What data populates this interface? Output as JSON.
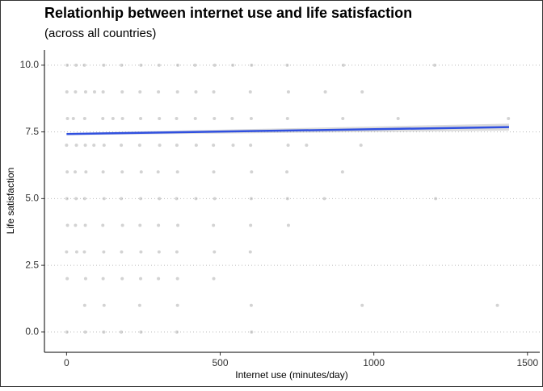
{
  "chart_data": {
    "type": "scatter",
    "title": "Relationhip between internet use and life satisfaction",
    "subtitle": "(across all countries)",
    "x_label": "Internet use (minutes/day)",
    "y_label": "Life satisfaction",
    "xlim": [
      -72,
      1540
    ],
    "ylim": [
      -0.76,
      10.57
    ],
    "xticks": [
      0,
      500,
      1000,
      1500
    ],
    "yticks": [
      {
        "value": 0,
        "label": "0.0"
      },
      {
        "value": 2.5,
        "label": "2.5"
      },
      {
        "value": 5,
        "label": "5.0"
      },
      {
        "value": 7.5,
        "label": "7.5"
      },
      {
        "value": 10,
        "label": "10.0"
      }
    ],
    "grid": true,
    "color": "#9e9e9e",
    "x": [
      2,
      31,
      58,
      121,
      179,
      242,
      301,
      362,
      418,
      482,
      541,
      602,
      718,
      901,
      1198,
      1,
      29,
      62,
      91,
      119,
      181,
      239,
      299,
      361,
      421,
      479,
      598,
      722,
      842,
      962,
      3,
      22,
      59,
      118,
      151,
      182,
      241,
      302,
      358,
      419,
      481,
      539,
      601,
      719,
      899,
      1079,
      1438,
      0,
      32,
      61,
      89,
      122,
      178,
      238,
      303,
      359,
      422,
      478,
      542,
      599,
      721,
      781,
      958,
      2,
      28,
      63,
      119,
      181,
      243,
      298,
      361,
      479,
      602,
      717,
      898,
      1,
      31,
      59,
      122,
      178,
      241,
      302,
      358,
      421,
      482,
      601,
      719,
      839,
      1201,
      3,
      29,
      61,
      118,
      182,
      239,
      299,
      362,
      478,
      599,
      722,
      0,
      33,
      58,
      121,
      179,
      242,
      301,
      359,
      481,
      598,
      2,
      62,
      119,
      181,
      241,
      299,
      361,
      479,
      59,
      122,
      238,
      361,
      601,
      962,
      1402,
      1,
      61,
      121,
      178,
      242,
      359,
      602
    ],
    "values": [
      10,
      10,
      10,
      10,
      10,
      10,
      10,
      10,
      10,
      10,
      10,
      10,
      10,
      10,
      10,
      9,
      9,
      9,
      9,
      9,
      9,
      9,
      9,
      9,
      9,
      9,
      9,
      9,
      9,
      9,
      8,
      8,
      8,
      8,
      8,
      8,
      8,
      8,
      8,
      8,
      8,
      8,
      8,
      8,
      8,
      8,
      8,
      7,
      7,
      7,
      7,
      7,
      7,
      7,
      7,
      7,
      7,
      7,
      7,
      7,
      7,
      7,
      7,
      6,
      6,
      6,
      6,
      6,
      6,
      6,
      6,
      6,
      6,
      6,
      6,
      5,
      5,
      5,
      5,
      5,
      5,
      5,
      5,
      5,
      5,
      5,
      5,
      5,
      5,
      4,
      4,
      4,
      4,
      4,
      4,
      4,
      4,
      4,
      4,
      4,
      3,
      3,
      3,
      3,
      3,
      3,
      3,
      3,
      3,
      3,
      2,
      2,
      2,
      2,
      2,
      2,
      2,
      2,
      1,
      1,
      1,
      1,
      1,
      1,
      1,
      0,
      0,
      0,
      0,
      0,
      0,
      0
    ],
    "fit": {
      "x": [
        0,
        1440
      ],
      "values": [
        7.42,
        7.68
      ],
      "lower": [
        7.38,
        7.55
      ],
      "upper": [
        7.46,
        7.81
      ],
      "color": "#3050e0"
    }
  }
}
